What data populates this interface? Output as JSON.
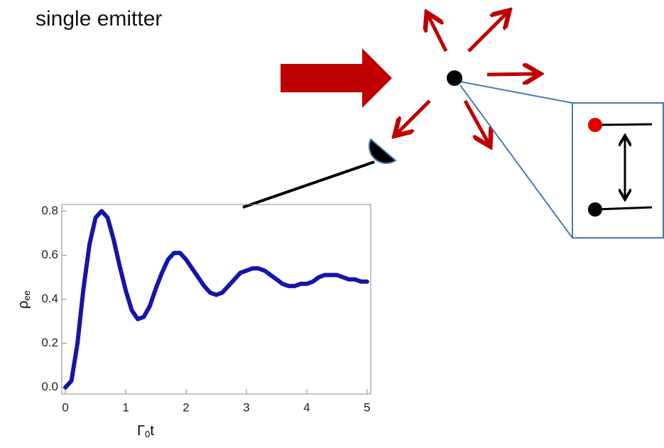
{
  "title": "single emitter",
  "chart_data": {
    "type": "line",
    "x": [
      0,
      0.1,
      0.2,
      0.3,
      0.4,
      0.5,
      0.6,
      0.7,
      0.8,
      0.9,
      1.0,
      1.1,
      1.2,
      1.3,
      1.4,
      1.5,
      1.6,
      1.7,
      1.8,
      1.9,
      2.0,
      2.1,
      2.2,
      2.3,
      2.4,
      2.5,
      2.6,
      2.7,
      2.8,
      2.9,
      3.0,
      3.1,
      3.2,
      3.3,
      3.4,
      3.5,
      3.6,
      3.7,
      3.8,
      3.9,
      4.0,
      4.1,
      4.2,
      4.3,
      4.4,
      4.5,
      4.6,
      4.7,
      4.8,
      4.9,
      5.0
    ],
    "series": [
      {
        "color": "#1515a8",
        "values": [
          0,
          0.03,
          0.2,
          0.45,
          0.65,
          0.77,
          0.8,
          0.77,
          0.67,
          0.55,
          0.44,
          0.35,
          0.31,
          0.32,
          0.37,
          0.45,
          0.52,
          0.58,
          0.61,
          0.61,
          0.58,
          0.54,
          0.5,
          0.46,
          0.43,
          0.42,
          0.43,
          0.46,
          0.49,
          0.52,
          0.53,
          0.54,
          0.54,
          0.53,
          0.51,
          0.49,
          0.47,
          0.46,
          0.46,
          0.47,
          0.47,
          0.48,
          0.5,
          0.51,
          0.51,
          0.51,
          0.5,
          0.49,
          0.49,
          0.48,
          0.48
        ]
      }
    ],
    "xlim": [
      -0.06,
      5.06
    ],
    "ylim": [
      -0.03,
      0.83
    ],
    "xticks": [
      0,
      1,
      2,
      3,
      4,
      5
    ],
    "yticks": [
      {
        "value": 0,
        "label": "0.0"
      },
      0.2,
      0.4,
      0.6,
      0.8
    ],
    "x_label": [
      "Γ",
      "0",
      "t"
    ],
    "y_label": [
      "ρ",
      "ee"
    ]
  }
}
